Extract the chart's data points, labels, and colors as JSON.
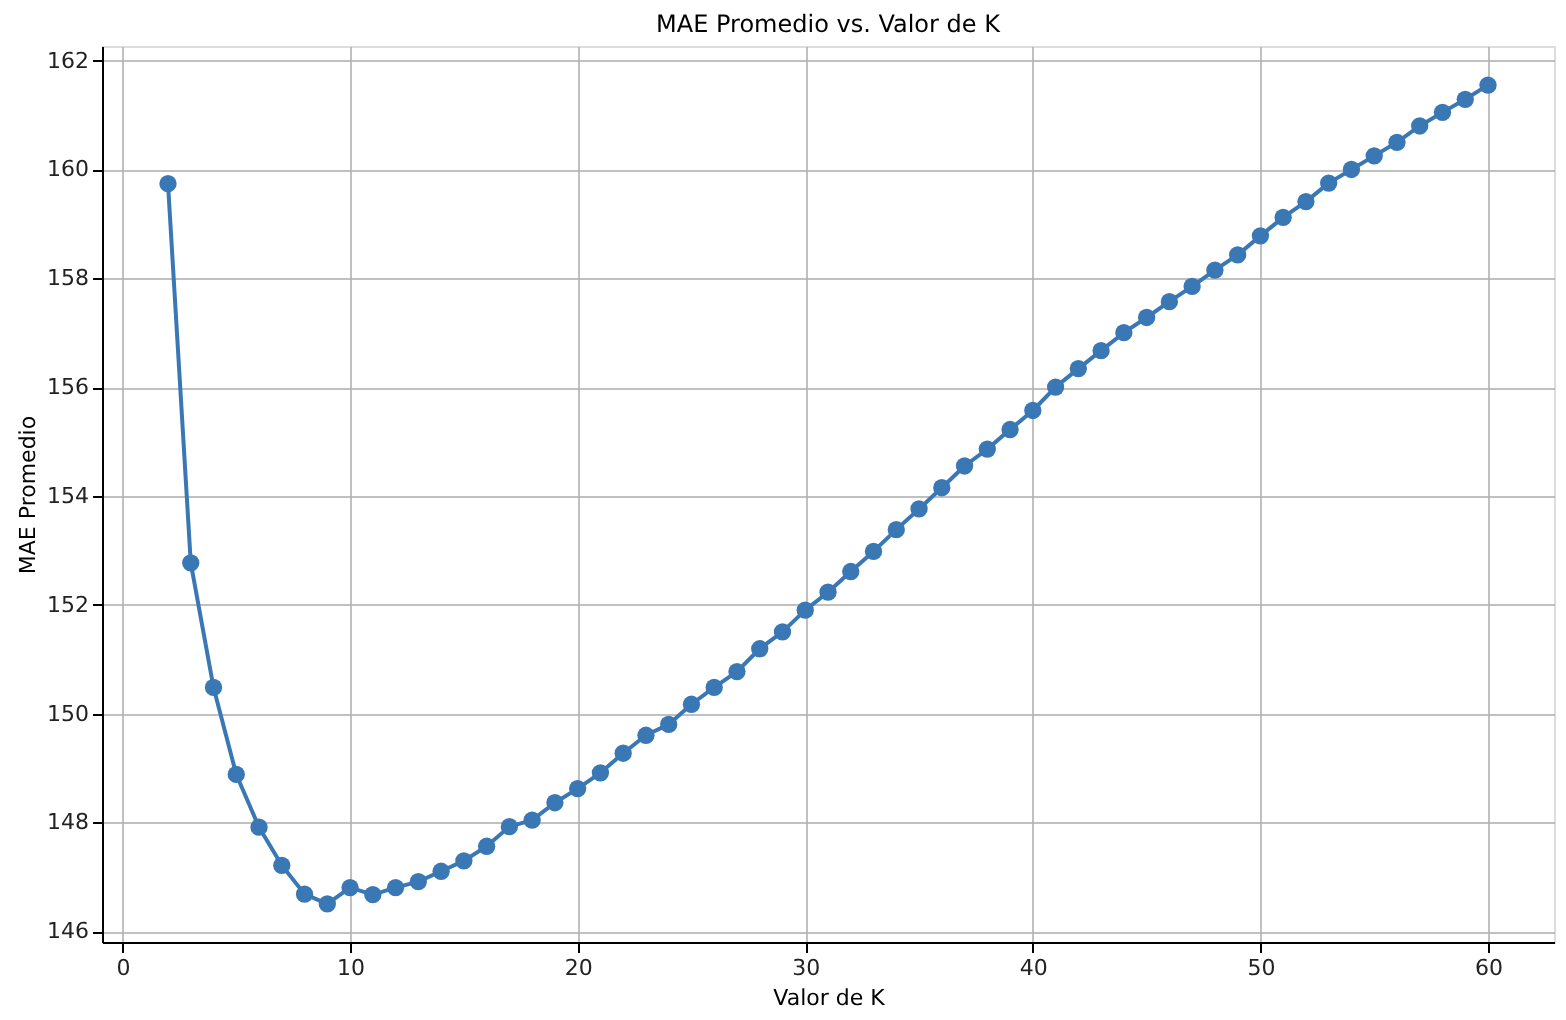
{
  "chart_data": {
    "type": "line",
    "title": "MAE Promedio vs. Valor de K",
    "xlabel": "Valor de K",
    "ylabel": "MAE Promedio",
    "x": [
      2,
      3,
      4,
      5,
      6,
      7,
      8,
      9,
      10,
      11,
      12,
      13,
      14,
      15,
      16,
      17,
      18,
      19,
      20,
      21,
      22,
      23,
      24,
      25,
      26,
      27,
      28,
      29,
      30,
      31,
      32,
      33,
      34,
      35,
      36,
      37,
      38,
      39,
      40,
      41,
      42,
      43,
      44,
      45,
      46,
      47,
      48,
      49,
      50,
      51,
      52,
      53,
      54,
      55,
      56,
      57,
      58,
      59,
      60
    ],
    "series": [
      {
        "color": "#3a78b5",
        "values": [
          159.74,
          152.77,
          150.48,
          148.88,
          147.91,
          147.21,
          146.68,
          146.5,
          146.8,
          146.67,
          146.8,
          146.91,
          147.1,
          147.29,
          147.56,
          147.92,
          148.04,
          148.36,
          148.62,
          148.91,
          149.27,
          149.6,
          149.8,
          150.17,
          150.48,
          150.77,
          151.19,
          151.5,
          151.9,
          152.23,
          152.61,
          152.98,
          153.38,
          153.76,
          154.15,
          154.55,
          154.86,
          155.22,
          155.57,
          156.0,
          156.34,
          156.67,
          157.0,
          157.28,
          157.57,
          157.85,
          158.15,
          158.43,
          158.78,
          159.12,
          159.41,
          159.75,
          160.0,
          160.25,
          160.5,
          160.8,
          161.05,
          161.29,
          161.55
        ]
      }
    ],
    "xlim": [
      -0.9,
      62.9
    ],
    "ylim": [
      145.8,
      162.27
    ],
    "xticks": [
      0,
      10,
      20,
      30,
      40,
      50,
      60
    ],
    "yticks": [
      146,
      148,
      150,
      152,
      154,
      156,
      158,
      160,
      162
    ],
    "grid": true,
    "marker": "circle",
    "line_style": "solid"
  }
}
